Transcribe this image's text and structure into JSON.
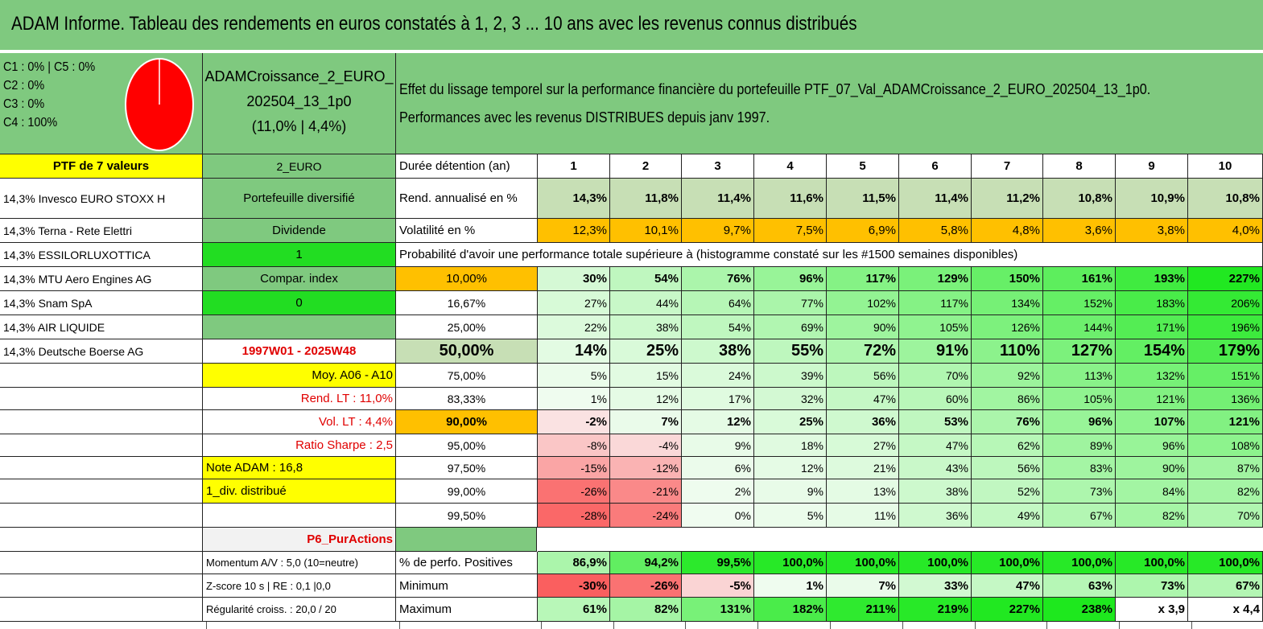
{
  "title": "ADAM Informe. Tableau des rendements en euros constatés à 1, 2, 3 ... 10 ans avec les revenus connus distribués",
  "allocation": {
    "lines": [
      "C1 : 0% | C5 : 0%",
      "C2 : 0%",
      "C3 : 0%",
      "C4 : 100%"
    ],
    "pie_slices": [
      {
        "label": "C1",
        "value": 0
      },
      {
        "label": "C2",
        "value": 0
      },
      {
        "label": "C3",
        "value": 0
      },
      {
        "label": "C4",
        "value": 100
      },
      {
        "label": "C5",
        "value": 0
      }
    ],
    "pie_color": "#ff0000"
  },
  "portfolio": {
    "name_line1": "ADAMCroissance_2_EURO_",
    "name_line2": "202504_13_1p0",
    "name_line3": "(11,0% | 4,4%)"
  },
  "effect": {
    "line1": "Effet du lissage temporel sur la performance financière du portefeuille PTF_07_Val_ADAMCroissance_2_EURO_202504_13_1p0.",
    "line2": "Performances avec les revenus DISTRIBUES depuis janv 1997."
  },
  "holdings_header": "PTF de 7 valeurs",
  "holdings": [
    "14,3% Invesco EURO STOXX H",
    "14,3% Terna - Rete Elettri",
    "14,3% ESSILORLUXOTTICA",
    "14,3% MTU Aero Engines AG",
    "14,3% Snam SpA",
    "14,3% AIR LIQUIDE",
    "14,3% Deutsche Boerse AG"
  ],
  "info": {
    "currency": "2_EURO",
    "type": "Portefeuille diversifié",
    "dividend_label": "Dividende",
    "dividend_value": "1",
    "compar_label": "Compar. index",
    "compar_value": "0",
    "period": "1997W01 - 2025W48",
    "moy": "Moy. A06 - A10",
    "rend_lt": "Rend. LT : 11,0%",
    "vol_lt": "Vol. LT : 4,4%",
    "sharpe": "Ratio Sharpe : 2,5",
    "note": "Note ADAM : 16,8",
    "div_distrib": "1_div. distribué",
    "p6": "P6_PurActions",
    "momentum": "Momentum A/V : 5,0 (10=neutre)",
    "zscore": "Z-score 10 s | RE : 0,1 |0,0",
    "regularite": "Régularité croiss. : 20,0 / 20"
  },
  "table": {
    "duration_label": "Durée détention (an)",
    "years": [
      "1",
      "2",
      "3",
      "4",
      "5",
      "6",
      "7",
      "8",
      "9",
      "10"
    ],
    "rend_label": "Rend. annualisé en %",
    "rend": [
      "14,3%",
      "11,8%",
      "11,4%",
      "11,6%",
      "11,5%",
      "11,4%",
      "11,2%",
      "10,8%",
      "10,9%",
      "10,8%"
    ],
    "vol_label": "Volatilité en %",
    "vol": [
      "12,3%",
      "10,1%",
      "9,7%",
      "7,5%",
      "6,9%",
      "5,8%",
      "4,8%",
      "3,6%",
      "3,8%",
      "4,0%"
    ],
    "prob_header": "Probabilité d'avoir une performance totale supérieure à (histogramme constaté sur les #1500 semaines disponibles)",
    "prob_rows": [
      {
        "q": "10,00%",
        "v": [
          "30%",
          "54%",
          "76%",
          "96%",
          "117%",
          "129%",
          "150%",
          "161%",
          "193%",
          "227%"
        ]
      },
      {
        "q": "16,67%",
        "v": [
          "27%",
          "44%",
          "64%",
          "77%",
          "102%",
          "117%",
          "134%",
          "152%",
          "183%",
          "206%"
        ]
      },
      {
        "q": "25,00%",
        "v": [
          "22%",
          "38%",
          "54%",
          "69%",
          "90%",
          "105%",
          "126%",
          "144%",
          "171%",
          "196%"
        ]
      },
      {
        "q": "50,00%",
        "v": [
          "14%",
          "25%",
          "38%",
          "55%",
          "72%",
          "91%",
          "110%",
          "127%",
          "154%",
          "179%"
        ]
      },
      {
        "q": "75,00%",
        "v": [
          "5%",
          "15%",
          "24%",
          "39%",
          "56%",
          "70%",
          "92%",
          "113%",
          "132%",
          "151%"
        ]
      },
      {
        "q": "83,33%",
        "v": [
          "1%",
          "12%",
          "17%",
          "32%",
          "47%",
          "60%",
          "86%",
          "105%",
          "121%",
          "136%"
        ]
      },
      {
        "q": "90,00%",
        "v": [
          "-2%",
          "7%",
          "12%",
          "25%",
          "36%",
          "53%",
          "76%",
          "96%",
          "107%",
          "121%"
        ]
      },
      {
        "q": "95,00%",
        "v": [
          "-8%",
          "-4%",
          "9%",
          "18%",
          "27%",
          "47%",
          "62%",
          "89%",
          "96%",
          "108%"
        ]
      },
      {
        "q": "97,50%",
        "v": [
          "-15%",
          "-12%",
          "6%",
          "12%",
          "21%",
          "43%",
          "56%",
          "83%",
          "90%",
          "87%"
        ]
      },
      {
        "q": "99,00%",
        "v": [
          "-26%",
          "-21%",
          "2%",
          "9%",
          "13%",
          "38%",
          "52%",
          "73%",
          "84%",
          "82%"
        ]
      },
      {
        "q": "99,50%",
        "v": [
          "-28%",
          "-24%",
          "0%",
          "5%",
          "11%",
          "36%",
          "49%",
          "67%",
          "82%",
          "70%"
        ]
      }
    ],
    "pos_label": "% de perfo. Positives",
    "pos": [
      "86,9%",
      "94,2%",
      "99,5%",
      "100,0%",
      "100,0%",
      "100,0%",
      "100,0%",
      "100,0%",
      "100,0%",
      "100,0%"
    ],
    "min_label": "Minimum",
    "min": [
      "-30%",
      "-26%",
      "-5%",
      "1%",
      "7%",
      "33%",
      "47%",
      "63%",
      "73%",
      "67%"
    ],
    "max_label": "Maximum",
    "max": [
      "61%",
      "82%",
      "131%",
      "182%",
      "211%",
      "219%",
      "227%",
      "238%",
      "x 3,9",
      "x 4,4"
    ]
  },
  "colors": {
    "green": "#7fc97f",
    "yellow": "#ffff00",
    "bright_green": "#22dd22",
    "orange": "#ffc000",
    "rend_bg": "#c7dfb5",
    "grey": "#f2f2f2",
    "red_text": "#e00000"
  }
}
